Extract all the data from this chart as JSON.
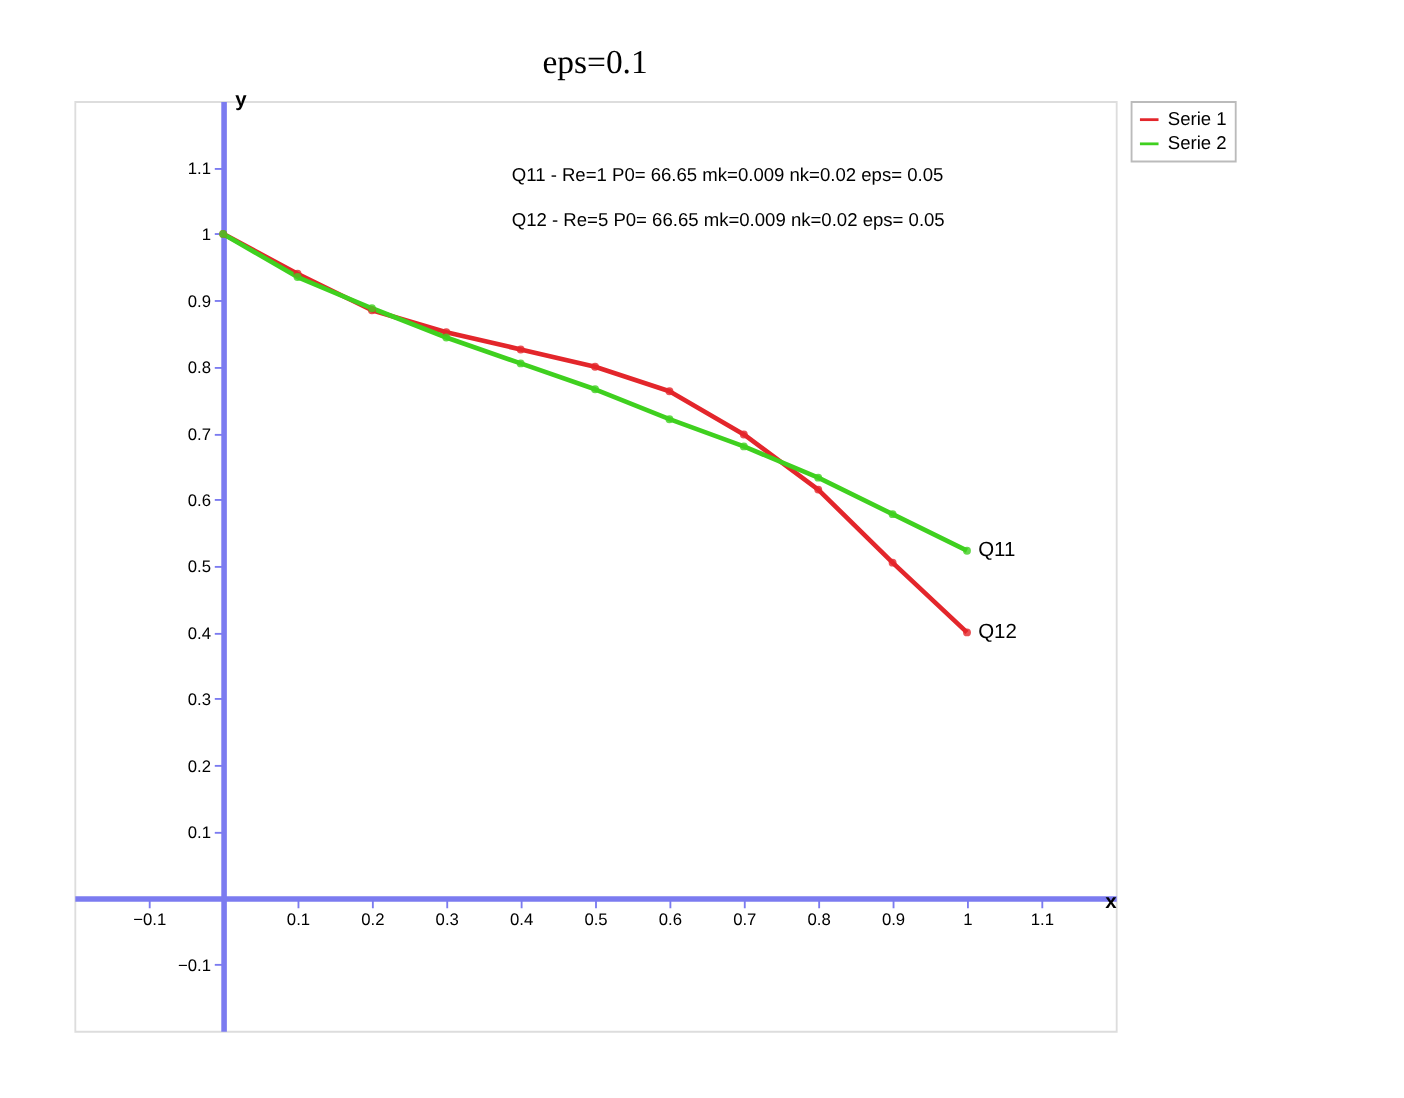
{
  "chart_data": {
    "type": "line",
    "title": "eps=0.1",
    "xlabel": "x",
    "ylabel": "y",
    "x": [
      0,
      0.1,
      0.2,
      0.3,
      0.4,
      0.5,
      0.6,
      0.7,
      0.8,
      0.9,
      1
    ],
    "series": [
      {
        "name": "Serie 1",
        "color": "#e3262b",
        "values": [
          1.0,
          0.94,
          0.885,
          0.852,
          0.826,
          0.8,
          0.763,
          0.698,
          0.615,
          0.505,
          0.4
        ]
      },
      {
        "name": "Serie 2",
        "color": "#3fd01f",
        "values": [
          1.0,
          0.935,
          0.888,
          0.844,
          0.805,
          0.766,
          0.721,
          0.68,
          0.633,
          0.578,
          0.523
        ]
      }
    ],
    "xlim": [
      -0.2,
      1.2
    ],
    "ylim": [
      -0.2,
      1.2
    ],
    "xticks": [
      -0.1,
      0.1,
      0.2,
      0.3,
      0.4,
      0.5,
      0.6,
      0.7,
      0.8,
      0.9,
      1,
      1.1
    ],
    "yticks": [
      -0.1,
      0.1,
      0.2,
      0.3,
      0.4,
      0.5,
      0.6,
      0.7,
      0.8,
      0.9,
      1,
      1.1
    ],
    "annotations": [
      {
        "text": "Q11",
        "x": 1,
        "y": 0.523
      },
      {
        "text": "Q12",
        "x": 1,
        "y": 0.4
      },
      "Q11 - Re=1    P0= 66.65   mk=0.009   nk=0.02   eps= 0.05",
      "Q12 - Re=5    P0= 66.65   mk=0.009   nk=0.02   eps= 0.05"
    ],
    "legend": "top right",
    "grid": false,
    "marker": "circle",
    "line_style": "solid"
  }
}
